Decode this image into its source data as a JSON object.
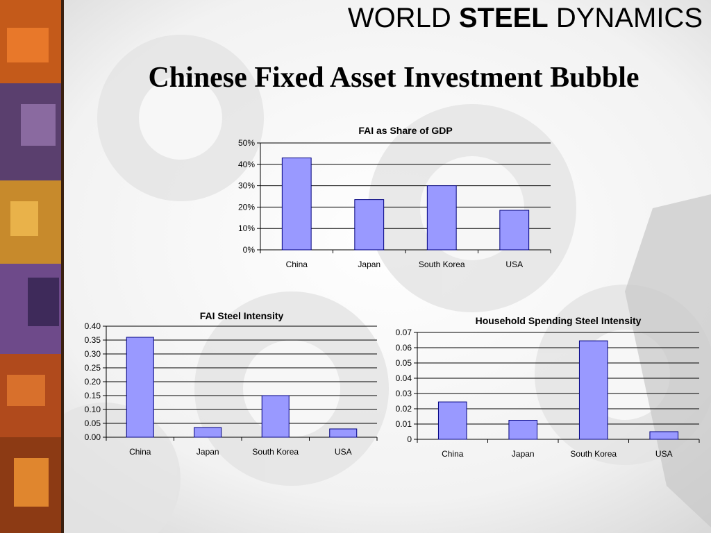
{
  "brand": {
    "part1": "WORLD",
    "part2": "STEEL",
    "part3": "DYNAMICS"
  },
  "slide_title": "Chinese Fixed Asset Investment Bubble",
  "colors": {
    "bar_fill": "#9999ff",
    "bar_stroke": "#000080"
  },
  "chart_data": [
    {
      "type": "bar",
      "title": "FAI as Share of GDP",
      "categories": [
        "China",
        "Japan",
        "South Korea",
        "USA"
      ],
      "values": [
        0.43,
        0.235,
        0.3,
        0.185
      ],
      "ylim": [
        0,
        0.5
      ],
      "yticks": [
        0,
        0.1,
        0.2,
        0.3,
        0.4,
        0.5
      ],
      "ytick_labels": [
        "0%",
        "10%",
        "20%",
        "30%",
        "40%",
        "50%"
      ],
      "grid": true
    },
    {
      "type": "bar",
      "title": "FAI Steel Intensity",
      "categories": [
        "China",
        "Japan",
        "South Korea",
        "USA"
      ],
      "values": [
        0.36,
        0.035,
        0.15,
        0.03
      ],
      "ylim": [
        0,
        0.4
      ],
      "yticks": [
        0,
        0.05,
        0.1,
        0.15,
        0.2,
        0.25,
        0.3,
        0.35,
        0.4
      ],
      "ytick_labels": [
        "0.00",
        "0.05",
        "0.10",
        "0.15",
        "0.20",
        "0.25",
        "0.30",
        "0.35",
        "0.40"
      ],
      "grid": true
    },
    {
      "type": "bar",
      "title": "Household Spending Steel Intensity",
      "categories": [
        "China",
        "Japan",
        "South Korea",
        "USA"
      ],
      "values": [
        0.0245,
        0.0125,
        0.0645,
        0.005
      ],
      "ylim": [
        0,
        0.07
      ],
      "yticks": [
        0,
        0.01,
        0.02,
        0.03,
        0.04,
        0.05,
        0.06,
        0.07
      ],
      "ytick_labels": [
        "0",
        "0.01",
        "0.02",
        "0.03",
        "0.04",
        "0.05",
        "0.06",
        "0.07"
      ],
      "grid": true
    }
  ]
}
